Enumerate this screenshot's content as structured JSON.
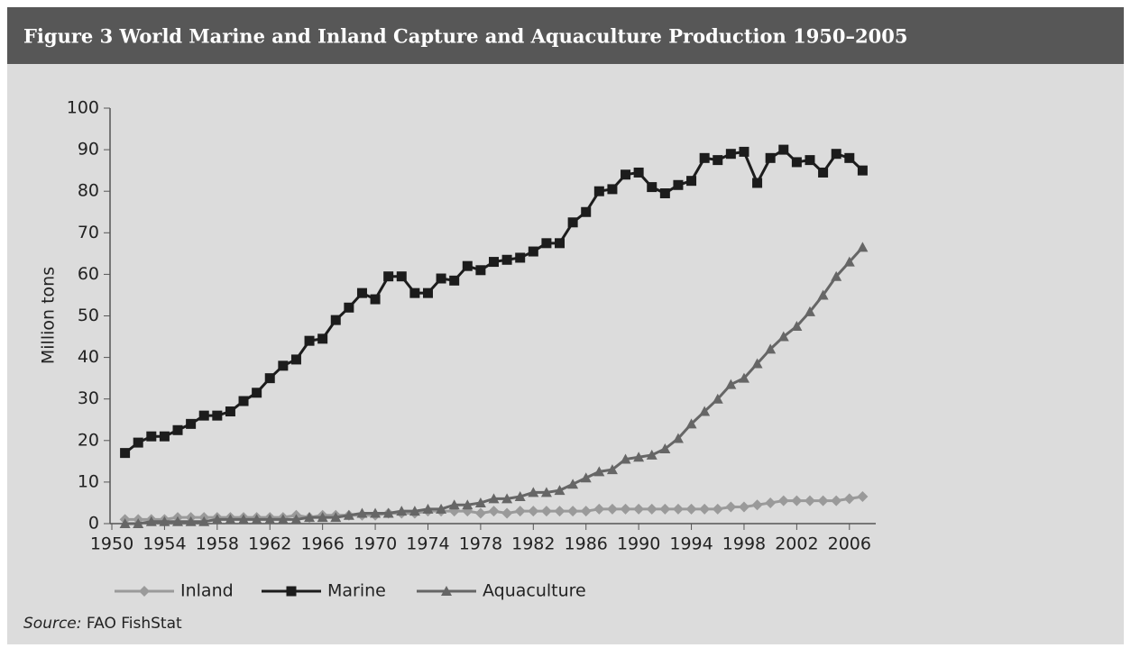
{
  "chart_data": {
    "type": "line",
    "title": "Figure 3  World Marine and Inland Capture and Aquaculture Production 1950–2005",
    "ylabel": "Million tons",
    "x": [
      1951,
      1952,
      1953,
      1954,
      1955,
      1956,
      1957,
      1958,
      1959,
      1960,
      1961,
      1962,
      1963,
      1964,
      1965,
      1966,
      1967,
      1968,
      1969,
      1970,
      1971,
      1972,
      1973,
      1974,
      1975,
      1976,
      1977,
      1978,
      1979,
      1980,
      1981,
      1982,
      1983,
      1984,
      1985,
      1986,
      1987,
      1988,
      1989,
      1990,
      1991,
      1992,
      1993,
      1994,
      1995,
      1996,
      1997,
      1998,
      1999,
      2000,
      2001,
      2002,
      2003,
      2004,
      2005,
      2006,
      2007
    ],
    "series": [
      {
        "name": "Inland",
        "color": "#9a9a9a",
        "marker": "diamond",
        "values": [
          1,
          1,
          1,
          1,
          1.5,
          1.5,
          1.5,
          1.5,
          1.5,
          1.5,
          1.5,
          1.5,
          1.5,
          2,
          1.5,
          2,
          2,
          2,
          2,
          2,
          2.5,
          2.5,
          2.5,
          3,
          3,
          3,
          3,
          2.5,
          3,
          2.5,
          3,
          3,
          3,
          3,
          3,
          3,
          3.5,
          3.5,
          3.5,
          3.5,
          3.5,
          3.5,
          3.5,
          3.5,
          3.5,
          3.5,
          4,
          4,
          4.5,
          5,
          5.5,
          5.5,
          5.5,
          5.5,
          5.5,
          6,
          6.5
        ]
      },
      {
        "name": "Marine",
        "color": "#1c1c1c",
        "marker": "square",
        "values": [
          17,
          19.5,
          21,
          21,
          22.5,
          24,
          26,
          26,
          27,
          29.5,
          31.5,
          35,
          38,
          39.5,
          44,
          44.5,
          49,
          52,
          55.5,
          54,
          59.5,
          59.5,
          55.5,
          55.5,
          59,
          58.5,
          62,
          61,
          63,
          63.5,
          64,
          65.5,
          67.5,
          67.5,
          72.5,
          75,
          80,
          80.5,
          84,
          84.5,
          81,
          79.5,
          81.5,
          82.5,
          88,
          87.5,
          89,
          89.5,
          82,
          88,
          90,
          87,
          87.5,
          84.5,
          89,
          88,
          85
        ]
      },
      {
        "name": "Aquaculture",
        "color": "#666666",
        "marker": "triangle",
        "values": [
          0,
          0,
          0.5,
          0.5,
          0.5,
          0.5,
          0.5,
          1,
          1,
          1,
          1,
          1,
          1,
          1,
          1.5,
          1.5,
          1.5,
          2,
          2.5,
          2.5,
          2.5,
          3,
          3,
          3.5,
          3.5,
          4.5,
          4.5,
          5,
          6,
          6,
          6.5,
          7.5,
          7.5,
          8,
          9.5,
          11,
          12.5,
          13,
          15.5,
          16,
          16.5,
          18,
          20.5,
          24,
          27,
          30,
          33.5,
          35,
          38.5,
          42,
          45,
          47.5,
          51,
          55,
          59.5,
          63,
          66.5
        ]
      }
    ],
    "xlim": [
      1950,
      2008
    ],
    "xticks": [
      1950,
      1954,
      1958,
      1962,
      1966,
      1970,
      1974,
      1978,
      1982,
      1986,
      1990,
      1994,
      1998,
      2002,
      2006
    ],
    "ylim": [
      0,
      100
    ],
    "yticks": [
      0,
      10,
      20,
      30,
      40,
      50,
      60,
      70,
      80,
      90,
      100
    ],
    "legend": "bottom",
    "source": {
      "label": "Source:",
      "text": "FAO FishStat"
    }
  }
}
